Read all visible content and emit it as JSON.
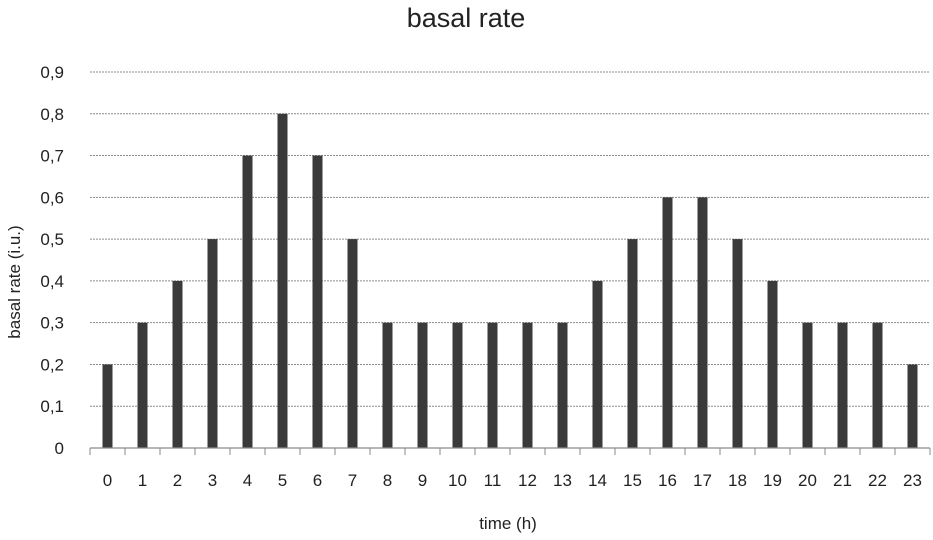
{
  "chart_data": {
    "type": "bar",
    "title": "basal rate",
    "xlabel": "time (h)",
    "ylabel": "basal rate (i.u.)",
    "categories": [
      "0",
      "1",
      "2",
      "3",
      "4",
      "5",
      "6",
      "7",
      "8",
      "9",
      "10",
      "11",
      "12",
      "13",
      "14",
      "15",
      "16",
      "17",
      "18",
      "19",
      "20",
      "21",
      "22",
      "23"
    ],
    "values": [
      0.2,
      0.3,
      0.4,
      0.5,
      0.7,
      0.8,
      0.7,
      0.5,
      0.3,
      0.3,
      0.3,
      0.3,
      0.3,
      0.3,
      0.4,
      0.5,
      0.6,
      0.6,
      0.5,
      0.4,
      0.3,
      0.3,
      0.3,
      0.2
    ],
    "ylim": [
      0,
      0.9
    ],
    "yticks": [
      "0",
      "0,1",
      "0,2",
      "0,3",
      "0,4",
      "0,5",
      "0,6",
      "0,7",
      "0,8",
      "0,9"
    ],
    "grid": true,
    "legend": "none",
    "colors": {
      "bar": "#3a3a3a",
      "grid": "#8a8a8a",
      "text": "#222222"
    }
  }
}
